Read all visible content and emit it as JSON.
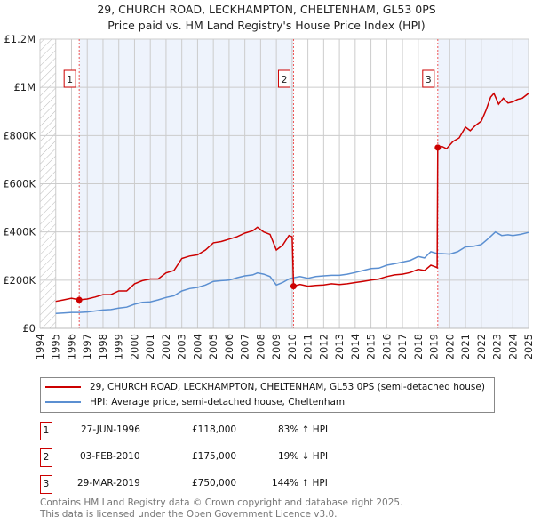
{
  "title": "29, CHURCH ROAD, LECKHAMPTON, CHELTENHAM, GL53 0PS",
  "subtitle": "Price paid vs. HM Land Registry's House Price Index (HPI)",
  "chart_data": {
    "type": "line",
    "title": "29, CHURCH ROAD, LECKHAMPTON, CHELTENHAM, GL53 0PS",
    "xlim": [
      1994,
      2025
    ],
    "ylim": [
      0,
      1200000
    ],
    "yticks": [
      {
        "v": 0,
        "label": "£0"
      },
      {
        "v": 200000,
        "label": "£200K"
      },
      {
        "v": 400000,
        "label": "£400K"
      },
      {
        "v": 600000,
        "label": "£600K"
      },
      {
        "v": 800000,
        "label": "£800K"
      },
      {
        "v": 1000000,
        "label": "£1M"
      },
      {
        "v": 1200000,
        "label": "£1.2M"
      }
    ],
    "xticks": [
      "1994",
      "1995",
      "1996",
      "1997",
      "1998",
      "1999",
      "2000",
      "2001",
      "2002",
      "2003",
      "2004",
      "2005",
      "2006",
      "2007",
      "2008",
      "2009",
      "2010",
      "2011",
      "2012",
      "2013",
      "2014",
      "2015",
      "2016",
      "2017",
      "2018",
      "2019",
      "2020",
      "2021",
      "2022",
      "2023",
      "2024",
      "2025"
    ],
    "grid": true,
    "series": [
      {
        "name": "29, CHURCH ROAD, LECKHAMPTON, CHELTENHAM, GL53 0PS (semi-detached house)",
        "color": "#cc0000",
        "x": [
          1995,
          1995.5,
          1996,
          1996.49,
          1997,
          1997.5,
          1998,
          1998.5,
          1999,
          1999.5,
          2000,
          2000.5,
          2001,
          2001.5,
          2002,
          2002.5,
          2003,
          2003.5,
          2004,
          2004.5,
          2005,
          2005.5,
          2006,
          2006.5,
          2007,
          2007.5,
          2007.8,
          2008.2,
          2008.6,
          2009.0,
          2009.4,
          2009.8,
          2010.0,
          2010.09,
          2010.5,
          2011,
          2011.5,
          2012,
          2012.5,
          2013,
          2013.5,
          2014,
          2014.5,
          2015,
          2015.5,
          2016,
          2016.5,
          2017,
          2017.5,
          2018,
          2018.4,
          2018.8,
          2019.1,
          2019.2,
          2019.24,
          2019.5,
          2019.8,
          2020.2,
          2020.6,
          2021,
          2021.3,
          2021.6,
          2022,
          2022.3,
          2022.6,
          2022.8,
          2023.1,
          2023.4,
          2023.7,
          2024,
          2024.3,
          2024.6,
          2025
        ],
        "y": [
          112000,
          118000,
          125000,
          118000,
          122000,
          130000,
          140000,
          140000,
          155000,
          155000,
          185000,
          198000,
          205000,
          205000,
          230000,
          240000,
          290000,
          300000,
          305000,
          325000,
          355000,
          360000,
          370000,
          380000,
          395000,
          405000,
          420000,
          400000,
          390000,
          325000,
          345000,
          385000,
          380000,
          175000,
          182000,
          175000,
          178000,
          180000,
          185000,
          182000,
          185000,
          190000,
          195000,
          200000,
          205000,
          215000,
          222000,
          225000,
          232000,
          245000,
          240000,
          262000,
          255000,
          252000,
          750000,
          755000,
          745000,
          775000,
          790000,
          835000,
          820000,
          840000,
          860000,
          905000,
          960000,
          975000,
          930000,
          955000,
          935000,
          940000,
          950000,
          955000,
          975000
        ]
      },
      {
        "name": "HPI: Average price, semi-detached house, Cheltenham",
        "color": "#5b8fd1",
        "x": [
          1995,
          1995.5,
          1996,
          1996.5,
          1997,
          1997.5,
          1998,
          1998.5,
          1999,
          1999.5,
          2000,
          2000.5,
          2001,
          2001.5,
          2002,
          2002.5,
          2003,
          2003.5,
          2004,
          2004.5,
          2005,
          2005.5,
          2006,
          2006.5,
          2007,
          2007.5,
          2007.8,
          2008.2,
          2008.6,
          2009.0,
          2009.4,
          2009.8,
          2010.1,
          2010.5,
          2011,
          2011.5,
          2012,
          2012.5,
          2013,
          2013.5,
          2014,
          2014.5,
          2015,
          2015.5,
          2016,
          2016.5,
          2017,
          2017.5,
          2018,
          2018.4,
          2018.8,
          2019.2,
          2019.5,
          2020,
          2020.5,
          2021,
          2021.5,
          2022,
          2022.4,
          2022.9,
          2023.3,
          2023.7,
          2024,
          2024.5,
          2025
        ],
        "y": [
          62000,
          64000,
          66000,
          66000,
          68000,
          72000,
          76000,
          78000,
          84000,
          88000,
          100000,
          108000,
          110000,
          118000,
          128000,
          135000,
          155000,
          165000,
          170000,
          180000,
          195000,
          198000,
          200000,
          210000,
          218000,
          222000,
          230000,
          225000,
          215000,
          180000,
          190000,
          205000,
          210000,
          215000,
          208000,
          215000,
          218000,
          220000,
          220000,
          225000,
          232000,
          240000,
          248000,
          250000,
          262000,
          268000,
          275000,
          282000,
          298000,
          292000,
          318000,
          310000,
          310000,
          308000,
          318000,
          338000,
          340000,
          348000,
          370000,
          400000,
          385000,
          388000,
          385000,
          390000,
          398000
        ]
      }
    ],
    "annotations": [
      {
        "label": "1",
        "x": 1996.49,
        "y": 118000
      },
      {
        "label": "2",
        "x": 2010.09,
        "y": 175000
      },
      {
        "label": "3",
        "x": 2019.24,
        "y": 750000
      }
    ],
    "shaded_ranges": [
      [
        1996.49,
        2010.09
      ],
      [
        2019.24,
        2025
      ]
    ],
    "legend_position": "bottom"
  },
  "legend": [
    {
      "label": "29, CHURCH ROAD, LECKHAMPTON, CHELTENHAM, GL53 0PS (semi-detached house)",
      "color": "#cc0000"
    },
    {
      "label": "HPI: Average price, semi-detached house, Cheltenham",
      "color": "#5b8fd1"
    }
  ],
  "transactions": [
    {
      "num": "1",
      "date": "27-JUN-1996",
      "price": "£118,000",
      "hpi": "83% ↑ HPI"
    },
    {
      "num": "2",
      "date": "03-FEB-2010",
      "price": "£175,000",
      "hpi": "19% ↓ HPI"
    },
    {
      "num": "3",
      "date": "29-MAR-2019",
      "price": "£750,000",
      "hpi": "144% ↑ HPI"
    }
  ],
  "footer": [
    "Contains HM Land Registry data © Crown copyright and database right 2025.",
    "This data is licensed under the Open Government Licence v3.0."
  ]
}
